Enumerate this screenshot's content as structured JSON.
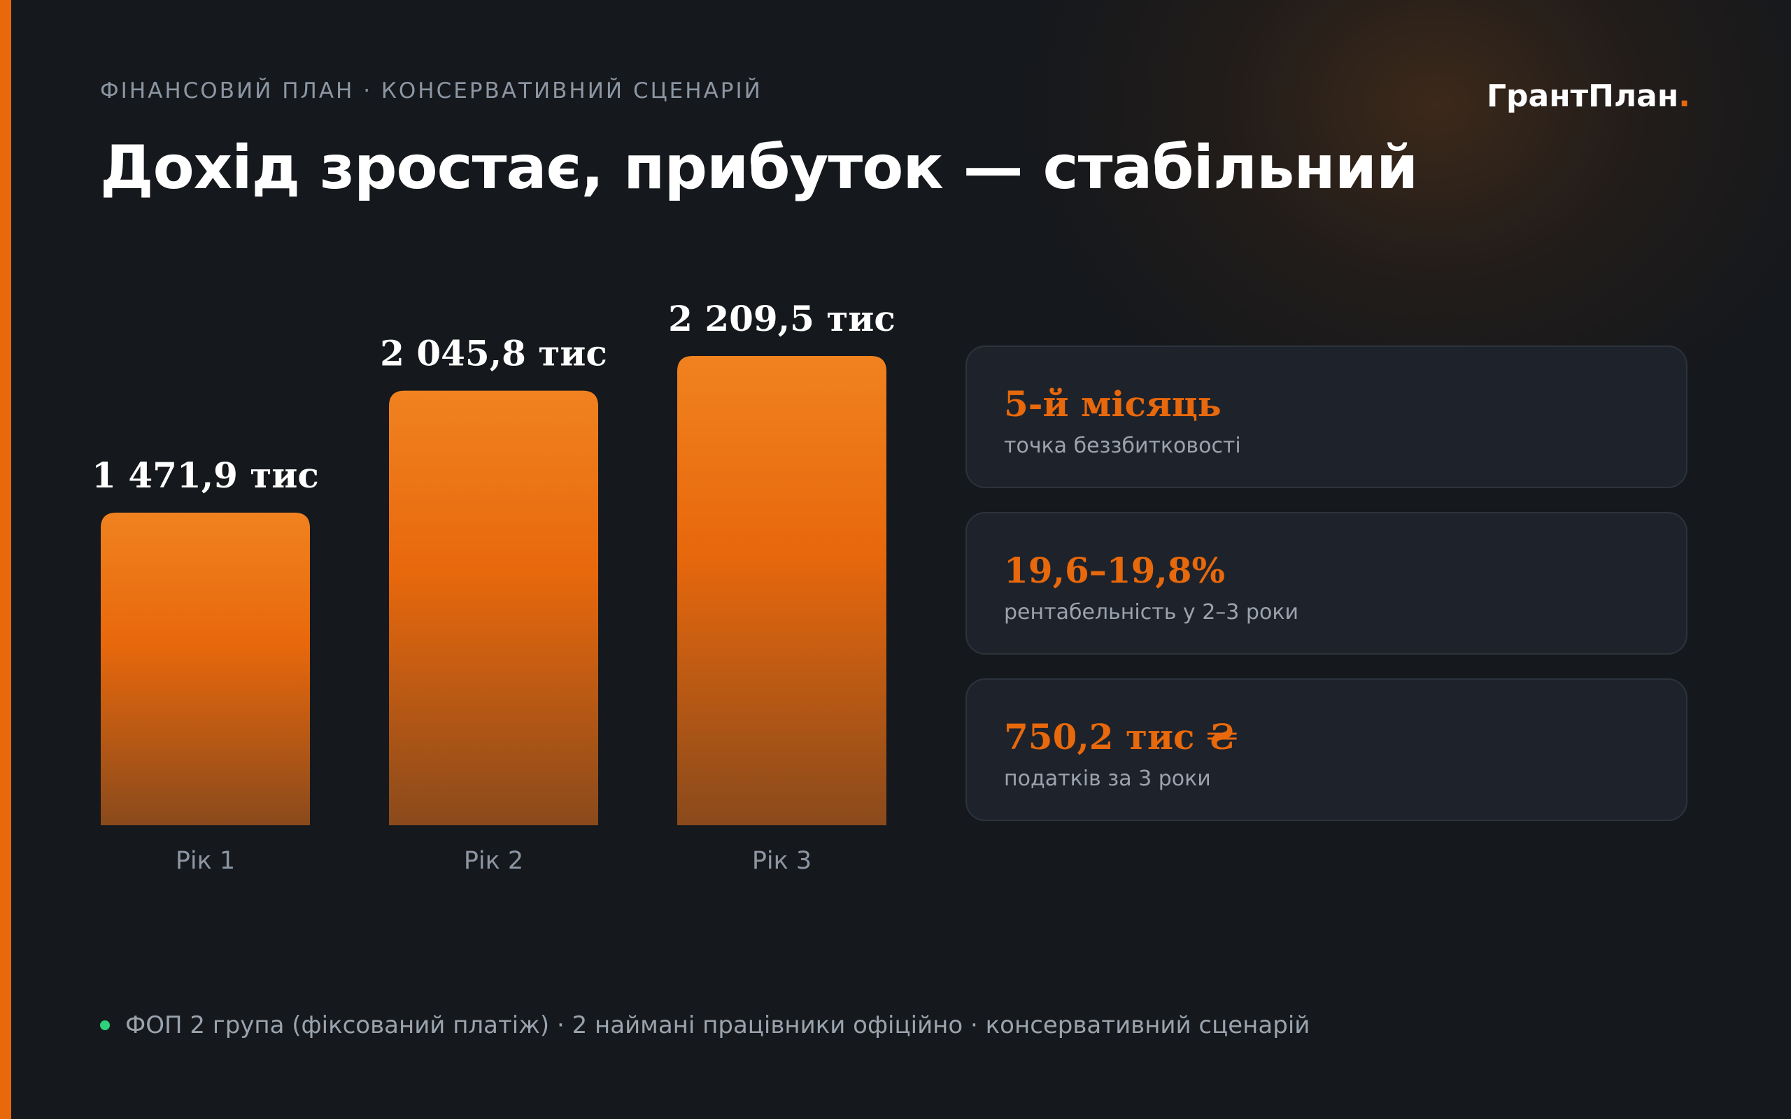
{
  "header": {
    "eyebrow": "ФІНАНСОВИЙ ПЛАН · КОНСЕРВАТИВНИЙ СЦЕНАРІЙ",
    "title": "Дохід зростає, прибуток — стабільний",
    "brand": "ГрантПлан",
    "brand_dot": "."
  },
  "colors": {
    "accent": "#e8680c",
    "bar_top": "#f0821f",
    "bar_mid": "#e8680c",
    "bar_bottom": "#8a4a1c",
    "background": "#15181c",
    "card_bg": "#1e232b",
    "muted_text": "#9aa3ae",
    "status_dot": "#2fd17a"
  },
  "chart_data": {
    "type": "bar",
    "categories": [
      "Рік 1",
      "Рік 2",
      "Рік 3"
    ],
    "values": [
      1471.9,
      2045.8,
      2209.5
    ],
    "value_labels": [
      "1 471,9 тис",
      "2 045,8 тис",
      "2 209,5 тис"
    ],
    "ylim": [
      0,
      2700
    ],
    "grid": false,
    "xlabel": "",
    "ylabel": ""
  },
  "metrics": [
    {
      "value": "5-й місяць",
      "label": "точка беззбитковості"
    },
    {
      "value": "19,6–19,8%",
      "label": "рентабельність у 2–3 роки"
    },
    {
      "value": "750,2 тис ₴",
      "label": "податків за 3 роки"
    }
  ],
  "footer": {
    "text": "ФОП 2 група (фіксований платіж) · 2 наймані працівники офіційно · консервативний сценарій"
  }
}
